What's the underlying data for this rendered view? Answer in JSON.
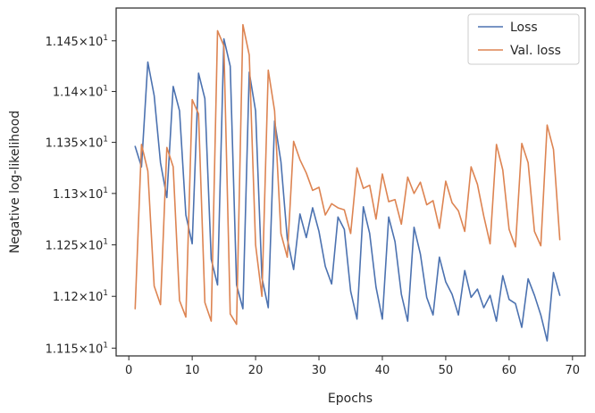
{
  "chart_data": {
    "type": "line",
    "xlabel": "Epochs",
    "ylabel": "Negative log-likelihood",
    "xlim": [
      -2,
      72
    ],
    "ylim": [
      11.1425,
      11.4825
    ],
    "y_scale": "log",
    "x_ticks": [
      0,
      10,
      20,
      30,
      40,
      50,
      60,
      70
    ],
    "x_tick_labels": [
      "0",
      "10",
      "20",
      "30",
      "40",
      "50",
      "60",
      "70"
    ],
    "y_ticks": [
      11.15,
      11.2,
      11.25,
      11.3,
      11.35,
      11.4,
      11.45
    ],
    "y_tick_mantissas": [
      "1.115",
      "1.12",
      "1.125",
      "1.13",
      "1.135",
      "1.14",
      "1.145"
    ],
    "y_tick_multiplier": "×10",
    "y_tick_exponent": "1",
    "grid": false,
    "legend_position": "top-right",
    "x": [
      1,
      2,
      3,
      4,
      5,
      6,
      7,
      8,
      9,
      10,
      11,
      12,
      13,
      14,
      15,
      16,
      17,
      18,
      19,
      20,
      21,
      22,
      23,
      24,
      25,
      26,
      27,
      28,
      29,
      30,
      31,
      32,
      33,
      34,
      35,
      36,
      37,
      38,
      39,
      40,
      41,
      42,
      43,
      44,
      45,
      46,
      47,
      48,
      49,
      50,
      51,
      52,
      53,
      54,
      55,
      56,
      57,
      58,
      59,
      60,
      61,
      62,
      63,
      64,
      65,
      66,
      67,
      68
    ],
    "series": [
      {
        "name": "Loss",
        "color": "#4c72b0",
        "values": [
          11.346,
          11.326,
          11.429,
          11.396,
          11.33,
          11.296,
          11.405,
          11.381,
          11.279,
          11.251,
          11.418,
          11.393,
          11.236,
          11.211,
          11.452,
          11.425,
          11.211,
          11.188,
          11.419,
          11.381,
          11.218,
          11.189,
          11.371,
          11.331,
          11.256,
          11.226,
          11.28,
          11.257,
          11.286,
          11.263,
          11.229,
          11.212,
          11.277,
          11.265,
          11.205,
          11.178,
          11.287,
          11.261,
          11.209,
          11.178,
          11.277,
          11.253,
          11.202,
          11.176,
          11.267,
          11.241,
          11.199,
          11.182,
          11.238,
          11.214,
          11.202,
          11.182,
          11.225,
          11.199,
          11.207,
          11.189,
          11.201,
          11.176,
          11.22,
          11.197,
          11.193,
          11.17,
          11.217,
          11.201,
          11.182,
          11.157,
          11.223,
          11.201
        ]
      },
      {
        "name": "Val. loss",
        "color": "#dd8452",
        "values": [
          11.188,
          11.348,
          11.322,
          11.21,
          11.192,
          11.345,
          11.326,
          11.196,
          11.18,
          11.392,
          11.378,
          11.194,
          11.176,
          11.46,
          11.445,
          11.183,
          11.173,
          11.466,
          11.436,
          11.25,
          11.2,
          11.421,
          11.381,
          11.261,
          11.238,
          11.351,
          11.333,
          11.32,
          11.303,
          11.306,
          11.279,
          11.29,
          11.286,
          11.284,
          11.261,
          11.325,
          11.305,
          11.308,
          11.275,
          11.319,
          11.292,
          11.294,
          11.27,
          11.316,
          11.3,
          11.311,
          11.289,
          11.293,
          11.266,
          11.312,
          11.291,
          11.283,
          11.263,
          11.326,
          11.309,
          11.278,
          11.251,
          11.348,
          11.323,
          11.265,
          11.248,
          11.349,
          11.33,
          11.263,
          11.249,
          11.367,
          11.343,
          11.255
        ]
      }
    ]
  }
}
